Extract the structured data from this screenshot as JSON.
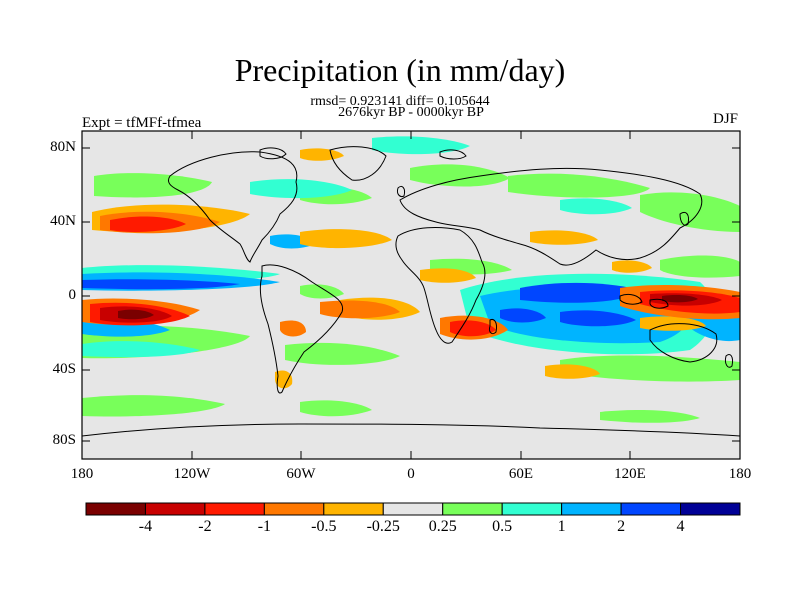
{
  "title": "Precipitation (in mm/day)",
  "stats_line": "rmsd= 0.923141 diff= 0.105644",
  "period_line": "2676kyr BP - 0000kyr BP",
  "experiment": "Expt = tfMFf-tfmea",
  "season": "DJF",
  "y_axis": {
    "ticks": [
      "80N",
      "40N",
      "0",
      "40S",
      "80S"
    ]
  },
  "x_axis": {
    "ticks": [
      "180",
      "120W",
      "60W",
      "0",
      "60E",
      "120E",
      "180"
    ]
  },
  "colorbar": {
    "labels": [
      "-4",
      "-2",
      "-1",
      "-0.5",
      "-0.25",
      "0.25",
      "0.5",
      "1",
      "2",
      "4"
    ],
    "colors": [
      "#7a0000",
      "#c80000",
      "#ff1a00",
      "#ff7800",
      "#ffb400",
      "#e6e6e6",
      "#78ff5a",
      "#32ffd2",
      "#00b4ff",
      "#0046ff",
      "#000096"
    ]
  },
  "colors": {
    "land_sea_background": "#e6e6e6",
    "coastline": "#000000"
  }
}
